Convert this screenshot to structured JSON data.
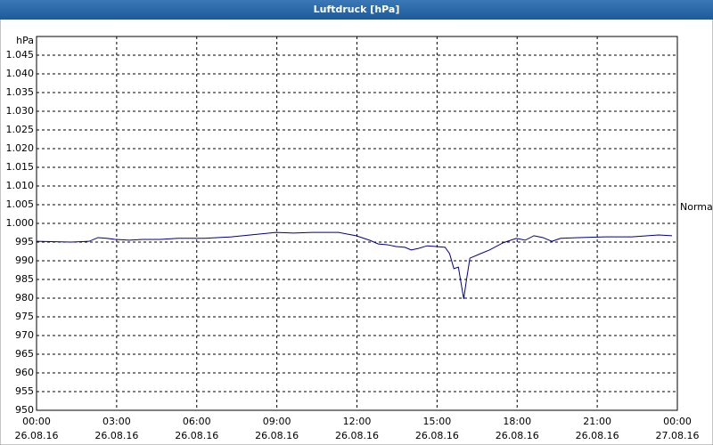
{
  "chart_data": {
    "type": "line",
    "title": "Luftdruck [hPa]",
    "y_label": "hPa",
    "annotation": "Normal",
    "x": [
      0,
      1.3,
      1.97,
      2.3,
      2.63,
      2.97,
      3.47,
      3.97,
      4.63,
      5.3,
      6.3,
      7.3,
      8.3,
      8.97,
      9.63,
      10.3,
      11.3,
      11.97,
      12.47,
      12.8,
      13.13,
      13.47,
      13.8,
      14.03,
      14.3,
      14.63,
      14.97,
      15.3,
      15.47,
      15.63,
      15.8,
      15.9,
      16,
      16.1,
      16.23,
      16.63,
      16.97,
      17.47,
      17.97,
      18.3,
      18.63,
      18.97,
      19.3,
      19.63,
      20.3,
      21.3,
      22.3,
      23.3,
      23.8
    ],
    "series": [
      {
        "name": "Luftdruck",
        "color": "#000080",
        "values": [
          995.2,
          995,
          995.2,
          996.2,
          996,
          995.7,
          995.5,
          995.7,
          995.7,
          996,
          996,
          996.4,
          997.1,
          997.6,
          997.4,
          997.6,
          997.6,
          996.7,
          995.5,
          994.5,
          994.3,
          993.8,
          993.6,
          992.9,
          993.3,
          994,
          993.8,
          993.6,
          991.9,
          987.9,
          988.3,
          984,
          979.8,
          984.8,
          990.7,
          991.9,
          992.9,
          994.8,
          996,
          995.5,
          996.7,
          996.2,
          995.2,
          996,
          996.2,
          996.4,
          996.4,
          996.9,
          996.7
        ]
      }
    ],
    "xlim": [
      0,
      24
    ],
    "xticks": [
      {
        "value": 0,
        "label": "00:00"
      },
      {
        "value": 3,
        "label": "03:00"
      },
      {
        "value": 6,
        "label": "06:00"
      },
      {
        "value": 9,
        "label": "09:00"
      },
      {
        "value": 12,
        "label": "12:00"
      },
      {
        "value": 15,
        "label": "15:00"
      },
      {
        "value": 18,
        "label": "18:00"
      },
      {
        "value": 21,
        "label": "21:00"
      },
      {
        "value": 24,
        "label": "00:00"
      }
    ],
    "xtick_dates": [
      "26.08.16",
      "26.08.16",
      "26.08.16",
      "26.08.16",
      "26.08.16",
      "26.08.16",
      "26.08.16",
      "26.08.16",
      "27.08.16"
    ],
    "ylim": [
      950,
      1050
    ],
    "yticks": [
      950,
      955,
      960,
      965,
      970,
      975,
      980,
      985,
      990,
      995,
      {
        "value": 1000,
        "label": "1.000"
      },
      {
        "value": 1005,
        "label": "1.005"
      },
      {
        "value": 1010,
        "label": "1.010"
      },
      {
        "value": 1015,
        "label": "1.015"
      },
      {
        "value": 1020,
        "label": "1.020"
      },
      {
        "value": 1025,
        "label": "1.025"
      },
      {
        "value": 1030,
        "label": "1.030"
      },
      {
        "value": 1035,
        "label": "1.035"
      },
      {
        "value": 1040,
        "label": "1.040"
      },
      {
        "value": 1045,
        "label": "1.045"
      }
    ],
    "grid": true
  }
}
